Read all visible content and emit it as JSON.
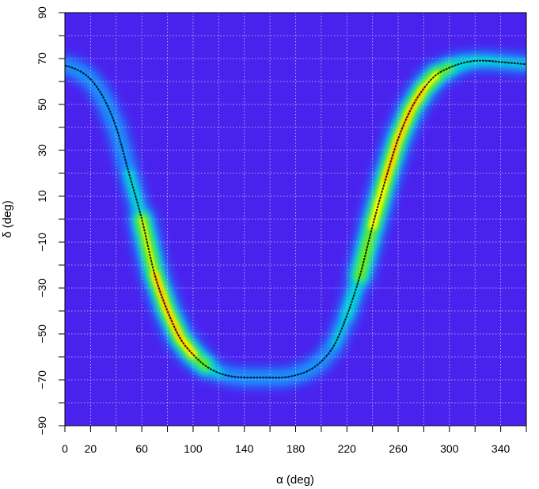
{
  "chart_data": {
    "type": "heatmap",
    "title": "",
    "xlabel": "α (deg)",
    "ylabel": "δ (deg)",
    "xlim": [
      0,
      360
    ],
    "ylim": [
      -90,
      90
    ],
    "x_ticks": [
      0,
      20,
      60,
      100,
      140,
      180,
      220,
      260,
      300,
      340
    ],
    "y_ticks": [
      -90,
      -70,
      -50,
      -30,
      -10,
      10,
      30,
      50,
      70,
      90
    ],
    "y_tick_labels": [
      "−90",
      "−70",
      "−50",
      "−30",
      "−10",
      "10",
      "30",
      "50",
      "70",
      "90"
    ],
    "grid": true,
    "grid_color": "#c8c8ff",
    "colormap": [
      "#4a22ee",
      "#0aa8ff",
      "#00e0d0",
      "#7cf000",
      "#ffff00",
      "#ffb000"
    ],
    "background_color": "#4a22ee",
    "curve": {
      "color": "#000000",
      "x": [
        0,
        10,
        20,
        30,
        40,
        50,
        60,
        70,
        80,
        90,
        100,
        110,
        120,
        130,
        140,
        150,
        160,
        170,
        180,
        190,
        200,
        210,
        220,
        230,
        240,
        250,
        260,
        270,
        280,
        290,
        300,
        310,
        320,
        330,
        340,
        350,
        360
      ],
      "y": [
        67,
        65,
        61,
        53,
        40,
        20,
        0,
        -24,
        -40,
        -52,
        -59,
        -64,
        -67,
        -68.5,
        -69,
        -69,
        -69,
        -69,
        -68,
        -66,
        -62,
        -55,
        -42,
        -25,
        -3,
        17,
        35,
        48,
        57,
        63,
        66,
        68,
        69,
        69,
        68.5,
        68,
        67.5
      ]
    },
    "density_band": {
      "x": [
        0,
        10,
        20,
        30,
        40,
        50,
        60,
        70,
        80,
        90,
        100,
        110,
        120,
        130,
        140,
        150,
        160,
        170,
        180,
        190,
        200,
        210,
        220,
        230,
        240,
        250,
        260,
        270,
        280,
        290,
        300,
        310,
        320,
        330,
        340,
        350,
        360
      ],
      "intensity": [
        0.15,
        0.12,
        0.1,
        0.1,
        0.12,
        0.18,
        0.35,
        0.85,
        1.0,
        0.95,
        0.7,
        0.35,
        0.15,
        0.08,
        0.05,
        0.04,
        0.04,
        0.04,
        0.05,
        0.06,
        0.08,
        0.12,
        0.2,
        0.4,
        0.7,
        0.9,
        1.0,
        0.95,
        0.8,
        0.55,
        0.4,
        0.3,
        0.25,
        0.2,
        0.18,
        0.16,
        0.15
      ]
    }
  }
}
